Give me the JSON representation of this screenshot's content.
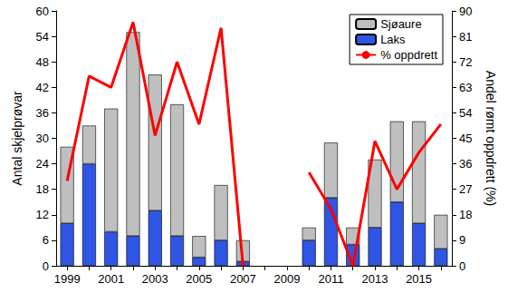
{
  "chart_data": {
    "type": "bar",
    "categories": [
      "1999",
      null,
      "2001",
      null,
      "2003",
      null,
      "2005",
      null,
      "2007",
      null,
      "2009",
      null,
      "2011",
      null,
      "2013",
      null,
      "2015",
      null
    ],
    "series": [
      {
        "name": "Laks",
        "type": "bar",
        "color": "#2f55e4",
        "values": [
          10,
          24,
          8,
          7,
          13,
          7,
          2,
          6,
          1,
          null,
          null,
          6,
          16,
          5,
          9,
          15,
          10,
          4
        ]
      },
      {
        "name": "Sjøaure",
        "type": "bar",
        "color": "#bfbfbf",
        "values": [
          18,
          9,
          29,
          48,
          32,
          31,
          5,
          13,
          5,
          null,
          null,
          3,
          13,
          4,
          16,
          19,
          24,
          8
        ]
      },
      {
        "name": "% oppdrett",
        "type": "line",
        "axis": "y2",
        "color": "#ff0000",
        "line_style": "solid",
        "values": [
          30,
          67,
          63,
          86,
          46,
          72,
          50,
          84,
          0,
          null,
          null,
          33,
          20,
          0,
          44,
          27,
          40,
          50
        ]
      }
    ],
    "y_label": "Antal skjelprøvar",
    "y2_label": "Andel rømt oppdrett (%)",
    "ylim": [
      0,
      60
    ],
    "yticks": [
      0,
      6,
      12,
      18,
      24,
      30,
      36,
      42,
      48,
      54,
      60
    ],
    "y2lim": [
      0,
      90
    ],
    "y2ticks": [
      0,
      9,
      18,
      27,
      36,
      45,
      54,
      63,
      72,
      81,
      90
    ],
    "stacked": true,
    "legend": "upper right",
    "grid": false
  }
}
